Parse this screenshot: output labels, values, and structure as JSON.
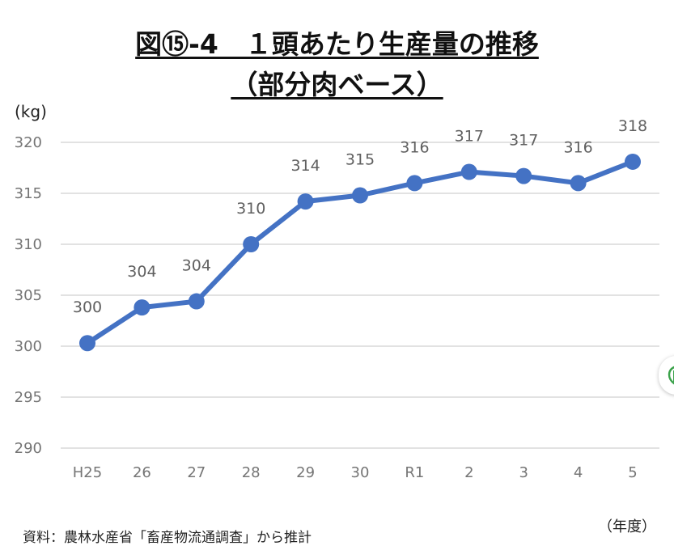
{
  "title": {
    "line1": "図⑮-4　１頭あたり生産量の推移",
    "line2": "（部分肉ベース）"
  },
  "y_unit": "(kg)",
  "x_unit": "（年度）",
  "source": "資料：農林水産省「畜産物流通調査」から推計",
  "colors": {
    "line": "#4472C4",
    "grid": "#d9d9d9",
    "tick": "#757575"
  },
  "side_button_icon": "leaf-icon",
  "chart_data": {
    "type": "line",
    "title": "図⑮-4　１頭あたり生産量の推移（部分肉ベース）",
    "xlabel": "（年度）",
    "ylabel": "(kg)",
    "categories": [
      "H25",
      "26",
      "27",
      "28",
      "29",
      "30",
      "R1",
      "2",
      "3",
      "4",
      "5"
    ],
    "series": [
      {
        "name": "1頭あたり生産量",
        "values": [
          300.3,
          303.8,
          304.4,
          310.0,
          314.2,
          314.8,
          316.0,
          317.1,
          316.7,
          316.0,
          318.1
        ],
        "labels": [
          "300",
          "304",
          "304",
          "310",
          "314",
          "315",
          "316",
          "317",
          "317",
          "316",
          "318"
        ]
      }
    ],
    "ylim": [
      290,
      320
    ],
    "yticks": [
      "290",
      "295",
      "300",
      "305",
      "310",
      "315",
      "320"
    ],
    "grid": true
  }
}
